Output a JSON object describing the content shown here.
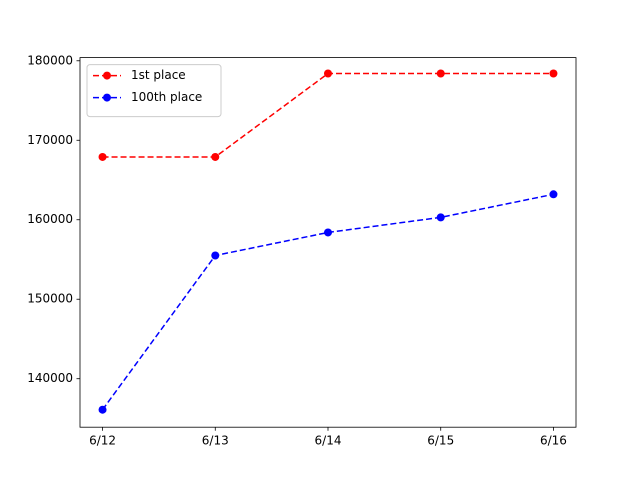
{
  "chart_data": {
    "type": "line",
    "categories": [
      "6/12",
      "6/13",
      "6/14",
      "6/15",
      "6/16"
    ],
    "series": [
      {
        "name": "1st place",
        "color": "#ff0000",
        "values": [
          167900,
          167900,
          178400,
          178400,
          178400
        ]
      },
      {
        "name": "100th place",
        "color": "#0000ff",
        "values": [
          136100,
          155500,
          158400,
          160300,
          163200
        ]
      }
    ],
    "ylim": [
      133900,
      180400
    ],
    "yticks": [
      140000,
      150000,
      160000,
      170000,
      180000
    ],
    "legend": "upper left",
    "line_style": "dashed",
    "marker": "circle"
  }
}
